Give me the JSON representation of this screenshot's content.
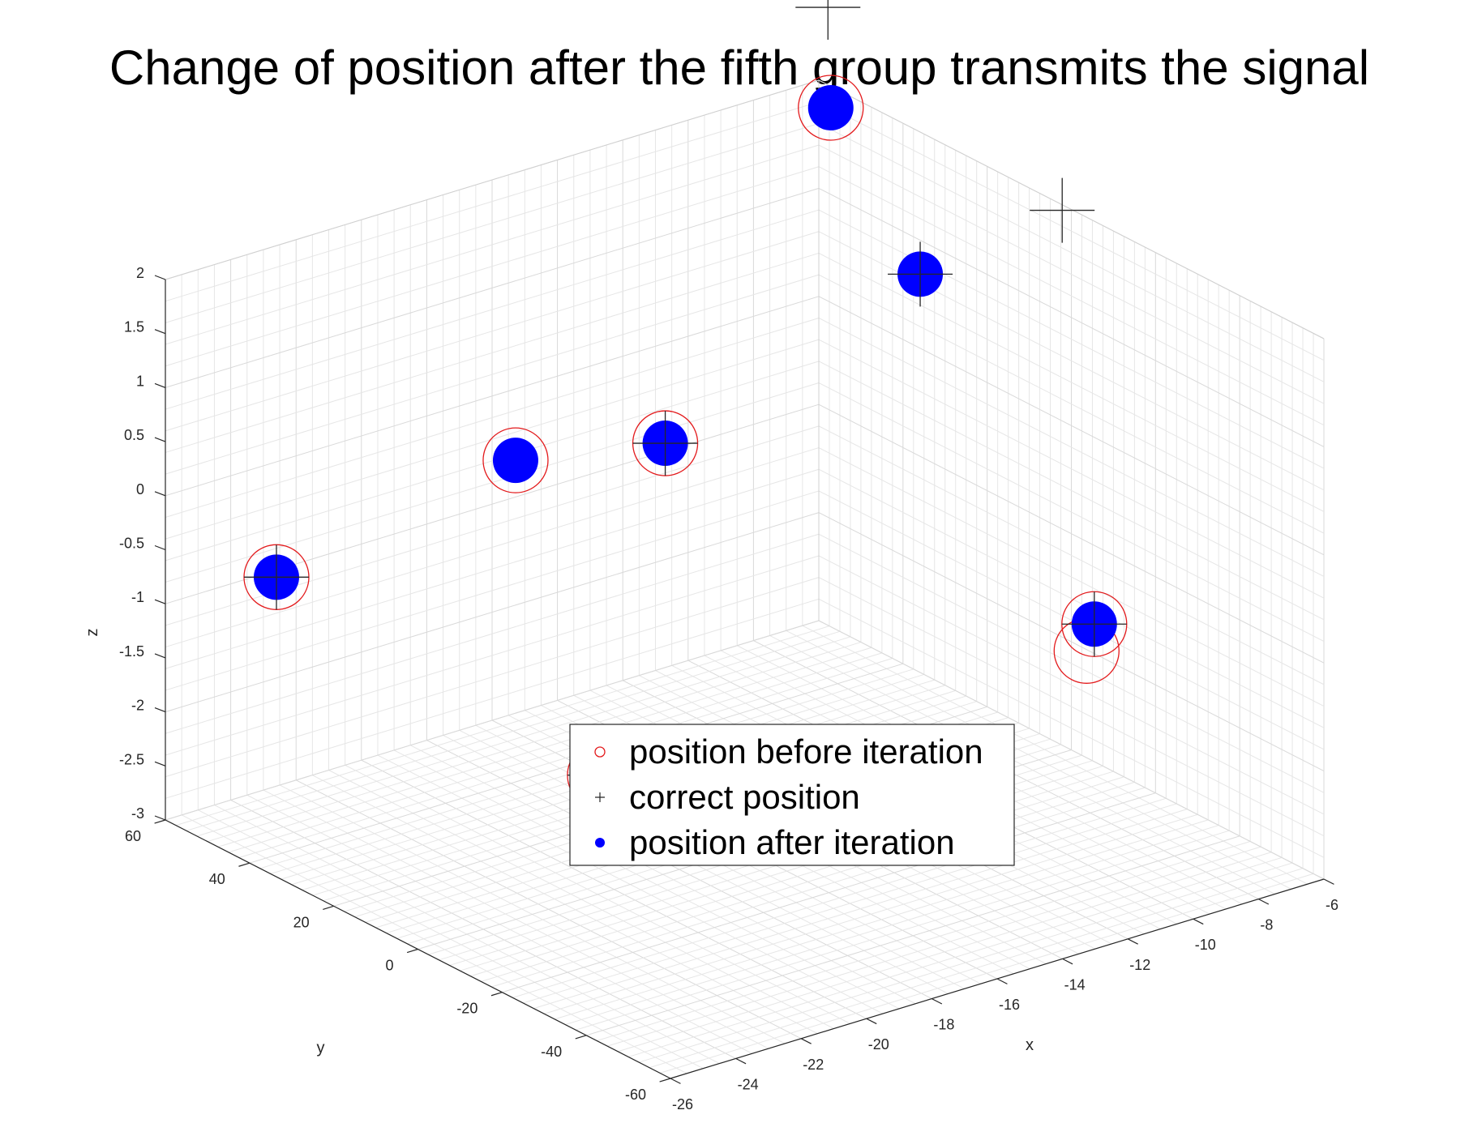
{
  "chart_data": {
    "type": "scatter",
    "title": "Change of position after the fifth group transmits the signal",
    "xlabel": "x",
    "ylabel": "y",
    "zlabel": "z",
    "xlim": [
      -26,
      -6
    ],
    "ylim": [
      -60,
      60
    ],
    "zlim": [
      -3,
      2
    ],
    "x_ticks": [
      -26,
      -24,
      -22,
      -20,
      -18,
      -16,
      -14,
      -12,
      -10,
      -8,
      -6
    ],
    "y_ticks": [
      -60,
      -40,
      -20,
      0,
      20,
      40,
      60
    ],
    "z_ticks": [
      -3,
      -2.5,
      -2,
      -1.5,
      -1,
      -0.5,
      0,
      0.5,
      1,
      1.5,
      2
    ],
    "grid": "on",
    "legend_position": "center",
    "colors": {
      "before": "#e31a1c",
      "correct": "#262626",
      "after": "#0000ff"
    },
    "series": [
      {
        "name": "position before iteration",
        "marker": "circle-open",
        "points": [
          {
            "x": -25.1,
            "y": 40.6,
            "z": -0.45
          },
          {
            "x": -23.2,
            "y": -21.5,
            "z": -1.22
          },
          {
            "x": -19.7,
            "y": 25.7,
            "z": 0.43
          },
          {
            "x": -17.0,
            "y": 11.1,
            "z": 0.63
          },
          {
            "x": -10.0,
            "y": -36.5,
            "z": -0.74
          },
          {
            "x": -6.6,
            "y": 52.5,
            "z": 1.95
          },
          {
            "x": -8.6,
            "y": -23.8,
            "z": -1.37
          }
        ]
      },
      {
        "name": "correct position",
        "marker": "plus",
        "points": [
          {
            "x": -25.1,
            "y": 40.6,
            "z": -0.45
          },
          {
            "x": -23.2,
            "y": -21.5,
            "z": -1.22
          },
          {
            "x": -17.0,
            "y": 11.1,
            "z": 0.63
          },
          {
            "x": -10.0,
            "y": -36.5,
            "z": -0.74
          },
          {
            "x": -11.0,
            "y": -2.9,
            "z": 1.92
          },
          {
            "x": -8.4,
            "y": 39.2,
            "z": 3.31
          },
          {
            "x": -12.0,
            "y": -44.4,
            "z": 3.43
          }
        ]
      },
      {
        "name": "position after iteration",
        "marker": "filled-dot",
        "points": [
          {
            "x": -25.1,
            "y": 40.6,
            "z": -0.45
          },
          {
            "x": -23.2,
            "y": -21.5,
            "z": -1.22
          },
          {
            "x": -19.7,
            "y": 25.7,
            "z": 0.43
          },
          {
            "x": -17.0,
            "y": 11.1,
            "z": 0.63
          },
          {
            "x": -10.0,
            "y": -36.5,
            "z": -0.74
          },
          {
            "x": -6.6,
            "y": 52.5,
            "z": 1.95
          },
          {
            "x": -11.0,
            "y": -2.9,
            "z": 1.92
          }
        ]
      }
    ]
  }
}
